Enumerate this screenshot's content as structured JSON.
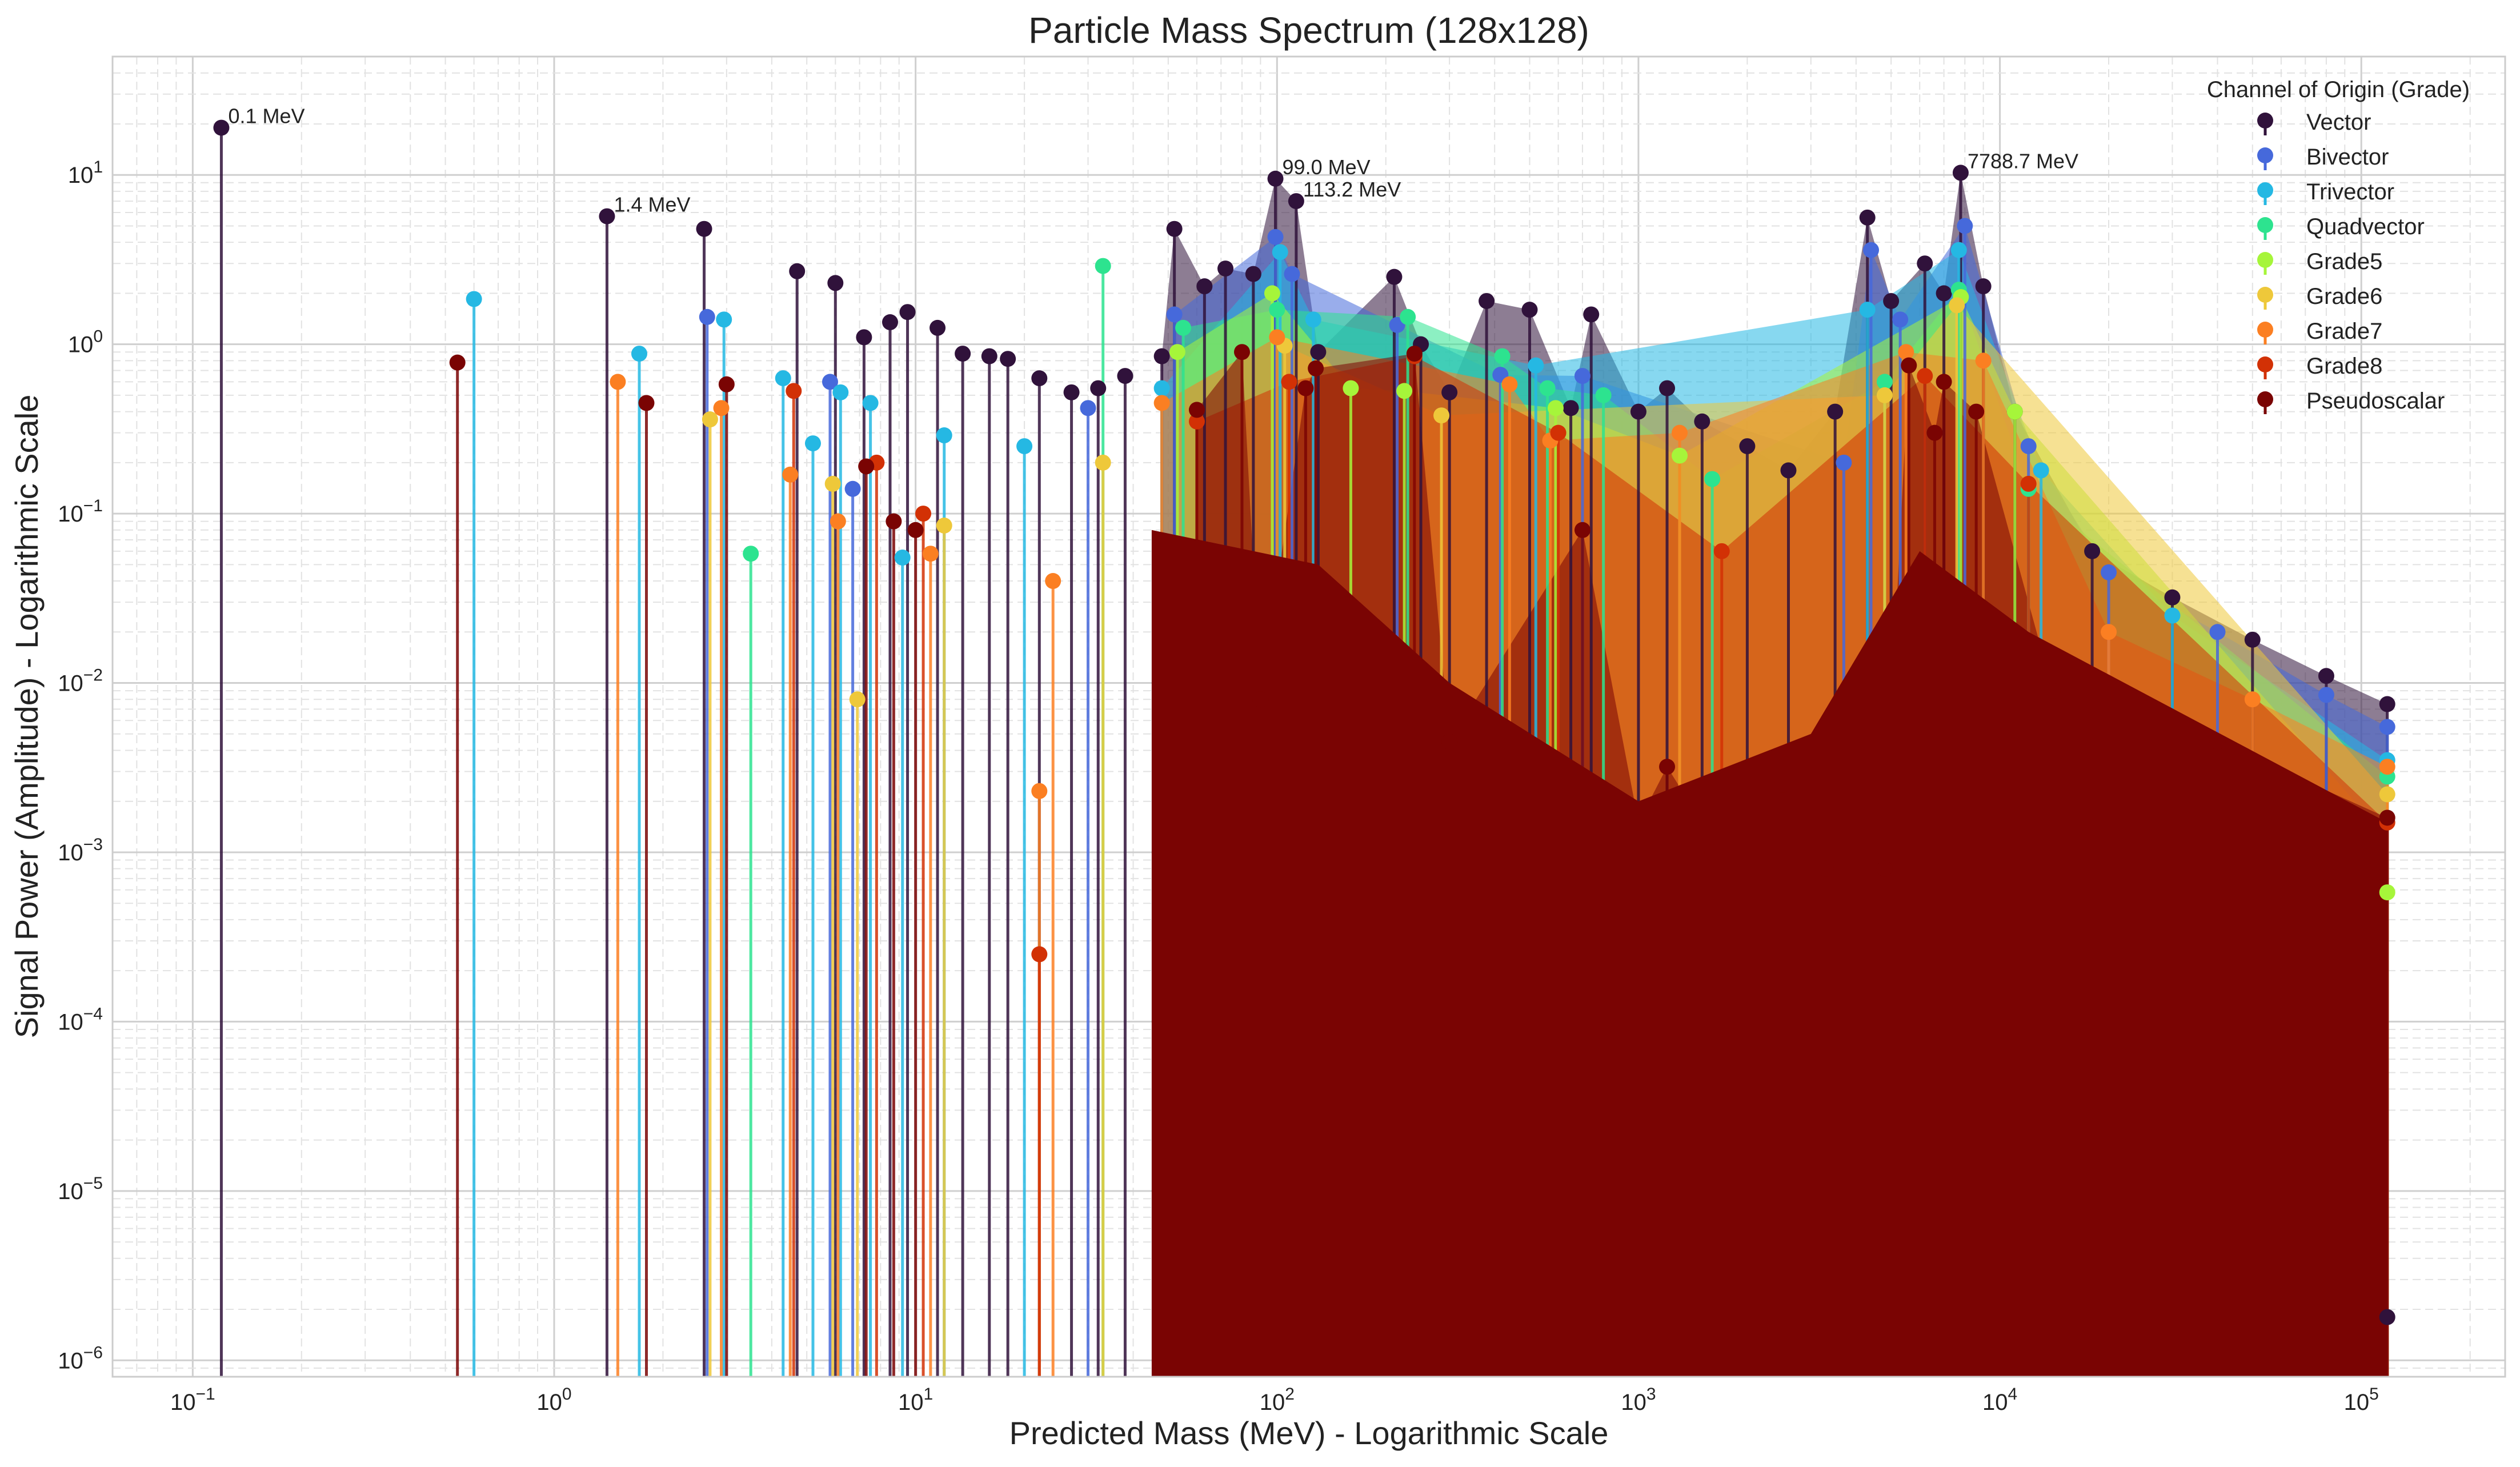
{
  "chart_data": {
    "type": "stem",
    "title": "Particle Mass Spectrum (128x128)",
    "xlabel": "Predicted Mass (MeV) - Logarithmic Scale",
    "ylabel": "Signal Power (Amplitude) - Logarithmic Scale",
    "xscale": "log",
    "yscale": "log",
    "xlim": [
      0.06,
      250000
    ],
    "ylim": [
      8e-07,
      50
    ],
    "grid": true,
    "x_ticks": [
      {
        "base": "10",
        "exp": "−1",
        "value": 0.1
      },
      {
        "base": "10",
        "exp": "0",
        "value": 1
      },
      {
        "base": "10",
        "exp": "1",
        "value": 10
      },
      {
        "base": "10",
        "exp": "2",
        "value": 100
      },
      {
        "base": "10",
        "exp": "3",
        "value": 1000
      },
      {
        "base": "10",
        "exp": "4",
        "value": 10000
      },
      {
        "base": "10",
        "exp": "5",
        "value": 100000
      }
    ],
    "y_ticks": [
      {
        "base": "10",
        "exp": "−6",
        "value": 1e-06
      },
      {
        "base": "10",
        "exp": "−5",
        "value": 1e-05
      },
      {
        "base": "10",
        "exp": "−4",
        "value": 0.0001
      },
      {
        "base": "10",
        "exp": "−3",
        "value": 0.001
      },
      {
        "base": "10",
        "exp": "−2",
        "value": 0.01
      },
      {
        "base": "10",
        "exp": "−1",
        "value": 0.1
      },
      {
        "base": "10",
        "exp": "0",
        "value": 1
      },
      {
        "base": "10",
        "exp": "1",
        "value": 10
      }
    ],
    "legend_title": "Channel of Origin (Grade)",
    "legend_position": "top-right",
    "series": [
      {
        "name": "Vector",
        "color": "#30123b",
        "points": [
          [
            0.12,
            19
          ],
          [
            1.4,
            5.7
          ],
          [
            2.6,
            4.8
          ],
          [
            4.7,
            2.7
          ],
          [
            6.0,
            2.3
          ],
          [
            7.2,
            1.1
          ],
          [
            8.5,
            1.35
          ],
          [
            9.5,
            1.55
          ],
          [
            11.5,
            1.25
          ],
          [
            13.5,
            0.88
          ],
          [
            16,
            0.85
          ],
          [
            18,
            0.82
          ],
          [
            22,
            0.63
          ],
          [
            27,
            0.52
          ],
          [
            32,
            0.55
          ],
          [
            38,
            0.65
          ],
          [
            48,
            0.85
          ],
          [
            52,
            4.8
          ],
          [
            63,
            2.2
          ],
          [
            72,
            2.8
          ],
          [
            86,
            2.6
          ],
          [
            99,
            9.5
          ],
          [
            113,
            7.0
          ],
          [
            130,
            0.9
          ],
          [
            211,
            2.5
          ],
          [
            250,
            1.0
          ],
          [
            300,
            0.52
          ],
          [
            380,
            1.8
          ],
          [
            500,
            1.6
          ],
          [
            650,
            0.42
          ],
          [
            740,
            1.5
          ],
          [
            1000,
            0.4
          ],
          [
            1200,
            0.55
          ],
          [
            1500,
            0.35
          ],
          [
            2000,
            0.25
          ],
          [
            2600,
            0.18
          ],
          [
            3500,
            0.4
          ],
          [
            4300,
            5.6
          ],
          [
            5000,
            1.8
          ],
          [
            6200,
            3.0
          ],
          [
            7000,
            2.0
          ],
          [
            7789,
            10.3
          ],
          [
            9000,
            2.2
          ],
          [
            11000,
            0.4
          ],
          [
            18000,
            0.06
          ],
          [
            30000,
            0.032
          ],
          [
            50000,
            0.018
          ],
          [
            80000,
            0.011
          ],
          [
            118000,
            0.0075
          ],
          [
            118000,
            1.8e-06
          ]
        ]
      },
      {
        "name": "Bivector",
        "color": "#4669db",
        "points": [
          [
            2.65,
            1.45
          ],
          [
            5.8,
            0.6
          ],
          [
            6.7,
            0.14
          ],
          [
            30,
            0.42
          ],
          [
            52,
            1.5
          ],
          [
            99,
            4.3
          ],
          [
            110,
            2.6
          ],
          [
            215,
            1.3
          ],
          [
            415,
            0.66
          ],
          [
            700,
            0.65
          ],
          [
            3700,
            0.2
          ],
          [
            4400,
            3.6
          ],
          [
            5300,
            1.4
          ],
          [
            8000,
            5.0
          ],
          [
            12000,
            0.25
          ],
          [
            20000,
            0.045
          ],
          [
            40000,
            0.02
          ],
          [
            80000,
            0.0085
          ],
          [
            118000,
            0.0055
          ]
        ]
      },
      {
        "name": "Trivector",
        "color": "#25b8e3",
        "points": [
          [
            0.6,
            1.85
          ],
          [
            1.72,
            0.88
          ],
          [
            2.95,
            1.4
          ],
          [
            4.3,
            0.63
          ],
          [
            5.2,
            0.26
          ],
          [
            6.2,
            0.52
          ],
          [
            7.5,
            0.45
          ],
          [
            9.2,
            0.055
          ],
          [
            12,
            0.29
          ],
          [
            20,
            0.25
          ],
          [
            48,
            0.55
          ],
          [
            102,
            3.5
          ],
          [
            126,
            1.4
          ],
          [
            520,
            0.75
          ],
          [
            4300,
            1.6
          ],
          [
            7700,
            3.6
          ],
          [
            13000,
            0.18
          ],
          [
            30000,
            0.025
          ],
          [
            118000,
            0.0035
          ]
        ]
      },
      {
        "name": "Quadvector",
        "color": "#2de38f",
        "points": [
          [
            3.5,
            0.058
          ],
          [
            33,
            2.9
          ],
          [
            55,
            1.25
          ],
          [
            100,
            1.6
          ],
          [
            230,
            1.45
          ],
          [
            420,
            0.85
          ],
          [
            560,
            0.55
          ],
          [
            800,
            0.5
          ],
          [
            1600,
            0.16
          ],
          [
            4800,
            0.6
          ],
          [
            7700,
            2.1
          ],
          [
            12000,
            0.14
          ],
          [
            118000,
            0.0028
          ]
        ]
      },
      {
        "name": "Grade5",
        "color": "#a6f53a",
        "points": [
          [
            53,
            0.9
          ],
          [
            97,
            2.0
          ],
          [
            160,
            0.55
          ],
          [
            225,
            0.53
          ],
          [
            590,
            0.42
          ],
          [
            1300,
            0.22
          ],
          [
            7800,
            1.9
          ],
          [
            11000,
            0.4
          ],
          [
            118000,
            0.00058
          ]
        ]
      },
      {
        "name": "Grade6",
        "color": "#eec83a",
        "points": [
          [
            2.7,
            0.36
          ],
          [
            5.9,
            0.15
          ],
          [
            6.9,
            0.008
          ],
          [
            12,
            0.085
          ],
          [
            33,
            0.2
          ],
          [
            105,
            0.98
          ],
          [
            285,
            0.38
          ],
          [
            4800,
            0.5
          ],
          [
            7600,
            1.7
          ],
          [
            118000,
            0.0022
          ]
        ]
      },
      {
        "name": "Grade7",
        "color": "#fb7f22",
        "points": [
          [
            1.5,
            0.6
          ],
          [
            2.9,
            0.42
          ],
          [
            4.5,
            0.17
          ],
          [
            6.1,
            0.09
          ],
          [
            11,
            0.058
          ],
          [
            22,
            0.0023
          ],
          [
            24,
            0.04
          ],
          [
            48,
            0.45
          ],
          [
            100,
            1.1
          ],
          [
            440,
            0.58
          ],
          [
            570,
            0.27
          ],
          [
            1300,
            0.3
          ],
          [
            5500,
            0.9
          ],
          [
            9000,
            0.8
          ],
          [
            20000,
            0.02
          ],
          [
            50000,
            0.008
          ],
          [
            118000,
            0.0032
          ]
        ]
      },
      {
        "name": "Grade8",
        "color": "#d23105",
        "points": [
          [
            4.6,
            0.53
          ],
          [
            7.8,
            0.2
          ],
          [
            10.5,
            0.1
          ],
          [
            22,
            0.00025
          ],
          [
            60,
            0.35
          ],
          [
            108,
            0.6
          ],
          [
            240,
            0.85
          ],
          [
            600,
            0.3
          ],
          [
            1700,
            0.06
          ],
          [
            6200,
            0.65
          ],
          [
            12000,
            0.15
          ],
          [
            118000,
            0.0015
          ]
        ]
      },
      {
        "name": "Pseudoscalar",
        "color": "#7a0403",
        "points": [
          [
            0.54,
            0.78
          ],
          [
            1.8,
            0.45
          ],
          [
            3.0,
            0.58
          ],
          [
            7.3,
            0.19
          ],
          [
            8.7,
            0.09
          ],
          [
            10,
            0.08
          ],
          [
            60,
            0.41
          ],
          [
            80,
            0.9
          ],
          [
            90,
            0.008
          ],
          [
            120,
            0.55
          ],
          [
            128,
            0.72
          ],
          [
            240,
            0.88
          ],
          [
            300,
            0.0045
          ],
          [
            700,
            0.08
          ],
          [
            1000,
            0.0015
          ],
          [
            1200,
            0.0032
          ],
          [
            1600,
            0.001
          ],
          [
            2500,
            0.0025
          ],
          [
            3300,
            0.0008
          ],
          [
            4800,
            0.0008
          ],
          [
            5600,
            0.75
          ],
          [
            6600,
            0.3
          ],
          [
            7000,
            0.6
          ],
          [
            8600,
            0.4
          ],
          [
            14000,
            0.009
          ],
          [
            40000,
            0.0045
          ],
          [
            118000,
            0.0016
          ]
        ]
      }
    ],
    "annotations": [
      {
        "text": "0.1 MeV",
        "x": 0.12,
        "y": 19
      },
      {
        "text": "1.4 MeV",
        "x": 1.4,
        "y": 5.7
      },
      {
        "text": "99.0 MeV",
        "x": 99,
        "y": 9.5
      },
      {
        "text": "113.2 MeV",
        "x": 113,
        "y": 7.0
      },
      {
        "text": "7788.7 MeV",
        "x": 7789,
        "y": 10.3
      }
    ]
  }
}
